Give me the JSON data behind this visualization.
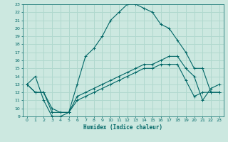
{
  "xlabel": "Humidex (Indice chaleur)",
  "xlim": [
    -0.5,
    23.5
  ],
  "ylim": [
    9,
    23
  ],
  "xticks": [
    0,
    1,
    2,
    3,
    4,
    5,
    6,
    7,
    8,
    9,
    10,
    11,
    12,
    13,
    14,
    15,
    16,
    17,
    18,
    19,
    20,
    21,
    22,
    23
  ],
  "yticks": [
    9,
    10,
    11,
    12,
    13,
    14,
    15,
    16,
    17,
    18,
    19,
    20,
    21,
    22,
    23
  ],
  "bg_color": "#cce8e0",
  "line_color": "#006666",
  "grid_color": "#b0d8ce",
  "line1_x": [
    0,
    1,
    2,
    3,
    4,
    5,
    6,
    7,
    8,
    9,
    10,
    11,
    12,
    13,
    14,
    15,
    16,
    17,
    18,
    19,
    20,
    21,
    22,
    23
  ],
  "line1_y": [
    13,
    14,
    11,
    9,
    9,
    9.5,
    13,
    16.5,
    17.5,
    19,
    21,
    22,
    23,
    23,
    22.5,
    22,
    20.5,
    20,
    18.5,
    17,
    15,
    15,
    12,
    12
  ],
  "line2_x": [
    0,
    1,
    2,
    3,
    4,
    5,
    6,
    7,
    8,
    9,
    10,
    11,
    12,
    13,
    14,
    15,
    16,
    17,
    18,
    19,
    20,
    21,
    22,
    23
  ],
  "line2_y": [
    13,
    12,
    12,
    10,
    9.5,
    9.5,
    11.5,
    12,
    12.5,
    13,
    13.5,
    14,
    14.5,
    15,
    15.5,
    15.5,
    16,
    16.5,
    16.5,
    15,
    14,
    11,
    12.5,
    13
  ],
  "line3_x": [
    0,
    1,
    2,
    3,
    4,
    5,
    6,
    7,
    8,
    9,
    10,
    11,
    12,
    13,
    14,
    15,
    16,
    17,
    18,
    19,
    20,
    21,
    22,
    23
  ],
  "line3_y": [
    13,
    12,
    12,
    9.5,
    9.5,
    9.5,
    11,
    11.5,
    12,
    12.5,
    13,
    13.5,
    14,
    14.5,
    15,
    15,
    15.5,
    15.5,
    15.5,
    13.5,
    11.5,
    12,
    12,
    12
  ]
}
